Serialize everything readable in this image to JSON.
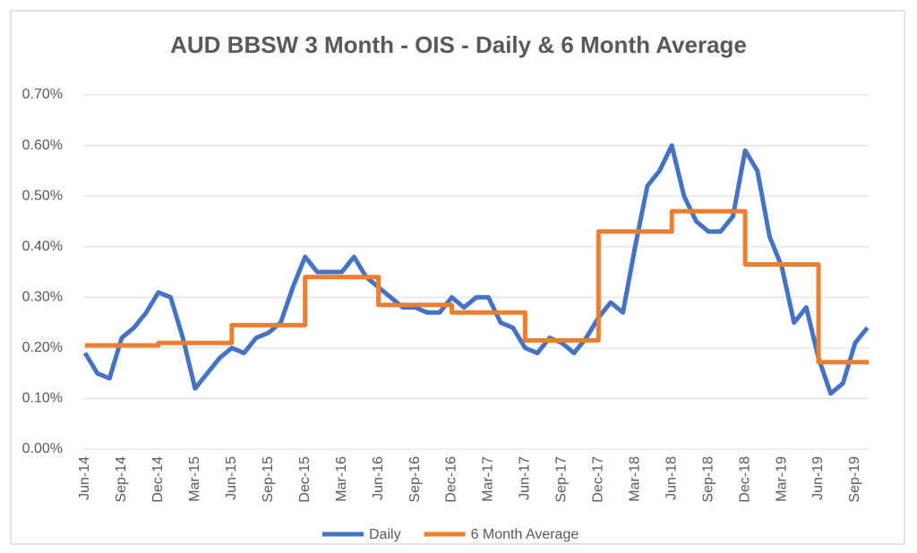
{
  "chart_data": {
    "type": "line",
    "title": "AUD BBSW 3 Month - OIS - Daily & 6 Month Average",
    "categories": [
      "Jun-14",
      null,
      null,
      "Sep-14",
      null,
      null,
      "Dec-14",
      null,
      null,
      "Mar-15",
      null,
      null,
      "Jun-15",
      null,
      null,
      "Sep-15",
      null,
      null,
      "Dec-15",
      null,
      null,
      "Mar-16",
      null,
      null,
      "Jun-16",
      null,
      null,
      "Sep-16",
      null,
      null,
      "Dec-16",
      null,
      null,
      "Mar-17",
      null,
      null,
      "Jun-17",
      null,
      null,
      "Sep-17",
      null,
      null,
      "Dec-17",
      null,
      null,
      "Mar-18",
      null,
      null,
      "Jun-18",
      null,
      null,
      "Sep-18",
      null,
      null,
      "Dec-18",
      null,
      null,
      "Mar-19",
      null,
      null,
      "Jun-19",
      null,
      null,
      "Sep-19",
      null
    ],
    "series": [
      {
        "name": "Daily",
        "color": "#4472c4",
        "values": [
          0.19,
          0.15,
          0.14,
          0.22,
          0.24,
          0.27,
          0.31,
          0.3,
          0.22,
          0.12,
          0.15,
          0.18,
          0.2,
          0.19,
          0.22,
          0.23,
          0.25,
          0.32,
          0.38,
          0.35,
          0.35,
          0.35,
          0.38,
          0.34,
          0.32,
          0.3,
          0.28,
          0.28,
          0.27,
          0.27,
          0.3,
          0.28,
          0.3,
          0.3,
          0.25,
          0.24,
          0.2,
          0.19,
          0.22,
          0.21,
          0.19,
          0.22,
          0.26,
          0.29,
          0.27,
          0.4,
          0.52,
          0.55,
          0.6,
          0.5,
          0.45,
          0.43,
          0.43,
          0.46,
          0.59,
          0.55,
          0.42,
          0.36,
          0.25,
          0.28,
          0.18,
          0.11,
          0.13,
          0.21,
          0.24
        ]
      },
      {
        "name": "6 Month Average",
        "color": "#ed7d31",
        "step": true,
        "values": [
          0.205,
          0.205,
          0.205,
          0.205,
          0.205,
          0.205,
          0.21,
          0.21,
          0.21,
          0.21,
          0.21,
          0.21,
          0.245,
          0.245,
          0.245,
          0.245,
          0.245,
          0.245,
          0.34,
          0.34,
          0.34,
          0.34,
          0.34,
          0.34,
          0.285,
          0.285,
          0.285,
          0.285,
          0.285,
          0.285,
          0.27,
          0.27,
          0.27,
          0.27,
          0.27,
          0.27,
          0.215,
          0.215,
          0.215,
          0.215,
          0.215,
          0.215,
          0.43,
          0.43,
          0.43,
          0.43,
          0.43,
          0.43,
          0.47,
          0.47,
          0.47,
          0.47,
          0.47,
          0.47,
          0.365,
          0.365,
          0.365,
          0.365,
          0.365,
          0.365,
          0.172,
          0.172,
          0.172,
          0.172,
          0.172
        ]
      }
    ],
    "ylim": [
      0,
      0.7
    ],
    "yticks": [
      {
        "value": 0,
        "label": "0.00%"
      },
      {
        "value": 0.1,
        "label": "0.10%"
      },
      {
        "value": 0.2,
        "label": "0.20%"
      },
      {
        "value": 0.3,
        "label": "0.30%"
      },
      {
        "value": 0.4,
        "label": "0.40%"
      },
      {
        "value": 0.5,
        "label": "0.50%"
      },
      {
        "value": 0.6,
        "label": "0.60%"
      },
      {
        "value": 0.7,
        "label": "0.70%"
      }
    ],
    "grid": true,
    "legend": "bottom"
  }
}
